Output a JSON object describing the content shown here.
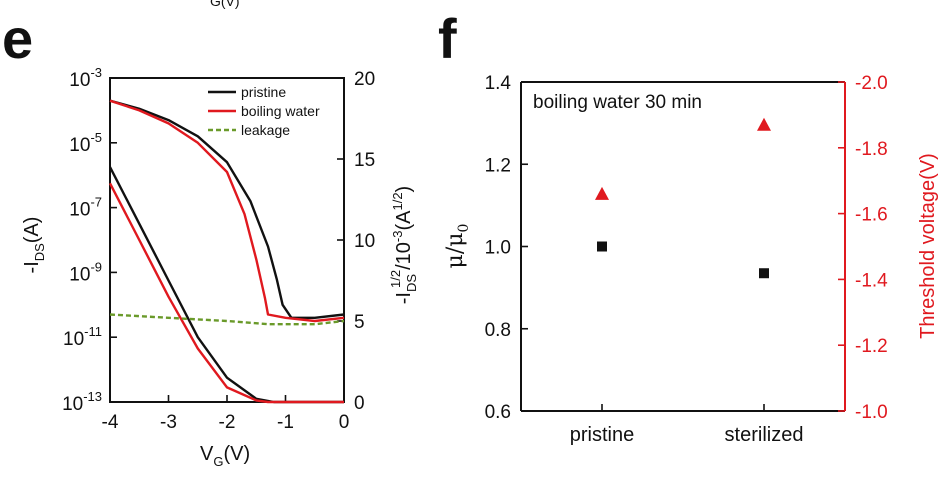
{
  "panel_e": {
    "letter": "e",
    "top_cut_label": "G(V)",
    "x_label_main": "V",
    "x_label_sub": "G",
    "x_label_unit": "(V)",
    "y_left_label": "-I",
    "y_left_sub": "DS",
    "y_left_unit": "(A)",
    "y_right_label": "-I",
    "y_right_sub": "DS",
    "y_right_sup": "1/2",
    "y_right_unit_a": "/10",
    "y_right_unit_b": "-3",
    "y_right_unit_c": "(A",
    "y_right_unit_d": "1/2",
    "y_right_unit_e": ")",
    "x_ticks": [
      "-4",
      "-3",
      "-2",
      "-1",
      "0"
    ],
    "y_left_ticks": [
      {
        "base": "10",
        "exp": "-3"
      },
      {
        "base": "10",
        "exp": "-5"
      },
      {
        "base": "10",
        "exp": "-7"
      },
      {
        "base": "10",
        "exp": "-9"
      },
      {
        "base": "10",
        "exp": "-11"
      },
      {
        "base": "10",
        "exp": "-13"
      }
    ],
    "y_right_ticks": [
      "20",
      "15",
      "10",
      "5",
      "0"
    ],
    "legend": [
      "pristine",
      "boiling water",
      "leakage"
    ]
  },
  "panel_f": {
    "letter": "f",
    "annotation": "boiling water 30 min",
    "y_left_label_main": "μ/μ",
    "y_left_label_sub": "0",
    "y_right_label": "Threshold voltage(V)",
    "x_ticks": [
      "pristine",
      "sterilized"
    ],
    "y_left_ticks": [
      "1.4",
      "1.2",
      "1.0",
      "0.8",
      "0.6"
    ],
    "y_right_ticks": [
      "-2.0",
      "-1.8",
      "-1.6",
      "-1.4",
      "-1.2",
      "-1.0"
    ]
  },
  "colors": {
    "black": "#111111",
    "red": "#e0191f",
    "green": "#6a9a2a",
    "axis_red": "#e0191f"
  },
  "chart_data": [
    {
      "type": "line",
      "panel": "e",
      "xlabel": "V_G(V)",
      "ylabel": "-I_DS(A)",
      "ylabel_right": "-I_DS^1/2/10^-3(A^1/2)",
      "xlim": [
        -4,
        0
      ],
      "ylim_log10": [
        -13,
        -3
      ],
      "ylim_right": [
        0,
        20
      ],
      "legend_position": "top-right",
      "series": [
        {
          "name": "pristine",
          "axis": "left-log",
          "x": [
            -4.0,
            -3.5,
            -3.0,
            -2.5,
            -2.0,
            -1.6,
            -1.3,
            -1.15,
            -1.05,
            -0.9,
            -0.5,
            0.0
          ],
          "log10_y": [
            -3.7,
            -3.95,
            -4.3,
            -4.8,
            -5.6,
            -6.8,
            -8.2,
            -9.2,
            -10.0,
            -10.4,
            -10.4,
            -10.3
          ]
        },
        {
          "name": "boiling water",
          "axis": "left-log",
          "x": [
            -4.0,
            -3.5,
            -3.0,
            -2.5,
            -2.0,
            -1.7,
            -1.5,
            -1.35,
            -1.3,
            -1.0,
            -0.5,
            0.0
          ],
          "log10_y": [
            -3.7,
            -4.0,
            -4.4,
            -5.0,
            -5.9,
            -7.2,
            -8.6,
            -9.8,
            -10.3,
            -10.4,
            -10.5,
            -10.4
          ]
        },
        {
          "name": "pristine",
          "axis": "right-sqrt",
          "x": [
            -4.0,
            -3.5,
            -3.0,
            -2.5,
            -2.0,
            -1.5,
            -1.2,
            -1.0,
            -0.5,
            0.0
          ],
          "y": [
            14.5,
            11.0,
            7.5,
            4.0,
            1.5,
            0.2,
            0.0,
            0.0,
            0.0,
            0.0
          ]
        },
        {
          "name": "boiling water",
          "axis": "right-sqrt",
          "x": [
            -4.0,
            -3.5,
            -3.0,
            -2.5,
            -2.0,
            -1.5,
            -1.3,
            -1.0,
            -0.5,
            0.0
          ],
          "y": [
            13.5,
            10.0,
            6.5,
            3.3,
            0.9,
            0.1,
            0.0,
            0.0,
            0.0,
            0.0
          ]
        },
        {
          "name": "leakage",
          "axis": "left-log",
          "x": [
            -4.0,
            -3.0,
            -2.0,
            -1.3,
            -0.5,
            0.0
          ],
          "log10_y": [
            -10.3,
            -10.4,
            -10.5,
            -10.6,
            -10.6,
            -10.5
          ]
        }
      ]
    },
    {
      "type": "scatter",
      "panel": "f",
      "categories": [
        "pristine",
        "sterilized"
      ],
      "series": [
        {
          "name": "μ/μ0",
          "axis": "left",
          "marker": "square",
          "values": [
            1.0,
            0.935
          ]
        },
        {
          "name": "Threshold voltage(V)",
          "axis": "right",
          "marker": "triangle",
          "values": [
            -1.66,
            -1.87
          ]
        }
      ],
      "ylim_left": [
        0.6,
        1.4
      ],
      "ylim_right": [
        -1.0,
        -2.0
      ]
    }
  ]
}
